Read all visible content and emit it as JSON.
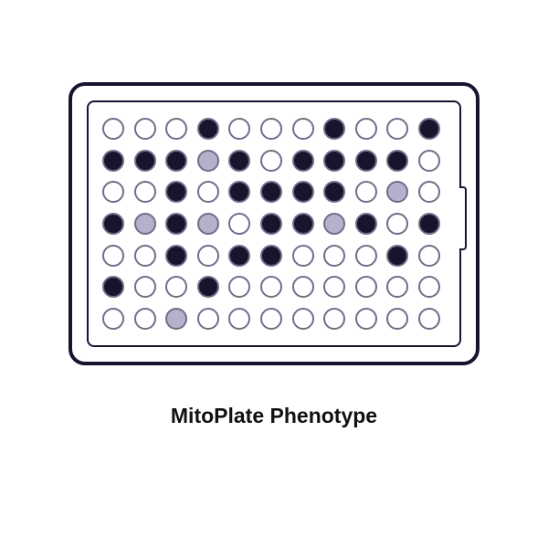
{
  "caption": "MitoPlate Phenotype",
  "plate": {
    "type": "infographic",
    "rows": 7,
    "cols": 11,
    "outer_border_color": "#17152e",
    "inner_border_color": "#17152e",
    "outer_border_width": 4,
    "inner_border_width": 2.5,
    "outer_radius": 18,
    "inner_radius": 8,
    "background_color": "#ffffff",
    "well_size": 24,
    "well_border_width": 2.5,
    "well_border_color": "#6f6e87",
    "colors": {
      "empty": "#ffffff",
      "dark": "#17152e",
      "light": "#b4b1cc"
    },
    "states": [
      [
        "empty",
        "empty",
        "empty",
        "dark",
        "empty",
        "empty",
        "empty",
        "dark",
        "empty",
        "empty",
        "dark"
      ],
      [
        "dark",
        "dark",
        "dark",
        "light",
        "dark",
        "empty",
        "dark",
        "dark",
        "dark",
        "dark",
        "empty"
      ],
      [
        "empty",
        "empty",
        "dark",
        "empty",
        "dark",
        "dark",
        "dark",
        "dark",
        "empty",
        "light",
        "empty"
      ],
      [
        "dark",
        "light",
        "dark",
        "light",
        "empty",
        "dark",
        "dark",
        "light",
        "dark",
        "empty",
        "dark"
      ],
      [
        "empty",
        "empty",
        "dark",
        "empty",
        "dark",
        "dark",
        "empty",
        "empty",
        "empty",
        "dark",
        "empty"
      ],
      [
        "dark",
        "empty",
        "empty",
        "dark",
        "empty",
        "empty",
        "empty",
        "empty",
        "empty",
        "empty",
        "empty"
      ],
      [
        "empty",
        "empty",
        "light",
        "empty",
        "empty",
        "empty",
        "empty",
        "empty",
        "empty",
        "empty",
        "empty"
      ]
    ]
  },
  "caption_fontsize": 23,
  "caption_weight": 700,
  "caption_color": "#111111"
}
